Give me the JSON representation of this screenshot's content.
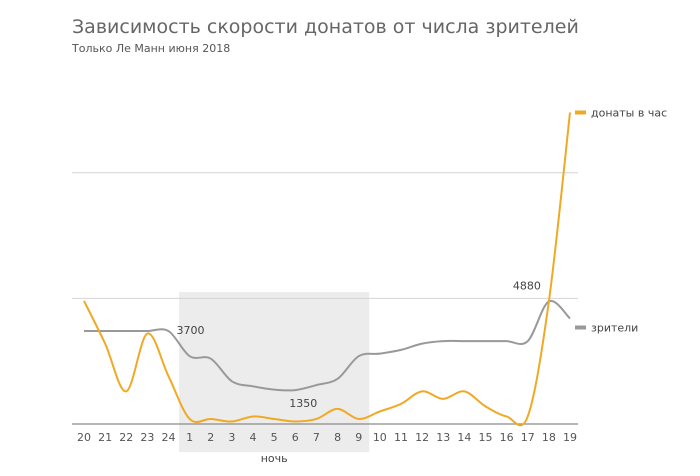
{
  "chart_data": {
    "type": "line",
    "title": "Зависимость скорости донатов от числа зрителей",
    "subtitle": "Только Ле Манн июня 2018",
    "x": [
      "20",
      "21",
      "22",
      "23",
      "24",
      "1",
      "2",
      "3",
      "4",
      "5",
      "6",
      "7",
      "8",
      "9",
      "10",
      "11",
      "12",
      "13",
      "14",
      "15",
      "16",
      "17",
      "18",
      "19"
    ],
    "highlight": {
      "label": "ночь",
      "from": "1",
      "to": "9"
    },
    "grid": true,
    "series": [
      {
        "name": "зрители",
        "color": "#999999",
        "values": [
          3700,
          3700,
          3700,
          3700,
          3700,
          2700,
          2600,
          1700,
          1500,
          1370,
          1350,
          1550,
          1800,
          2700,
          2800,
          2950,
          3200,
          3300,
          3300,
          3300,
          3300,
          3300,
          4880,
          4200
        ]
      },
      {
        "name": "донаты в час",
        "color": "#F0A924",
        "values": [
          4900,
          3200,
          1300,
          3600,
          1900,
          200,
          200,
          100,
          300,
          200,
          100,
          200,
          600,
          200,
          500,
          800,
          1300,
          1000,
          1300,
          700,
          300,
          300,
          4880,
          12400
        ]
      }
    ],
    "annotations": [
      {
        "series": "зрители",
        "x": "24",
        "text": "3700"
      },
      {
        "series": "зрители",
        "x": "6",
        "text": "1350"
      },
      {
        "series": "зрители",
        "x": "18",
        "text": "4880"
      }
    ],
    "ylim": [
      0,
      12500
    ],
    "yticks": [
      0,
      5000,
      10000
    ],
    "legend": "right, next to series ends"
  }
}
